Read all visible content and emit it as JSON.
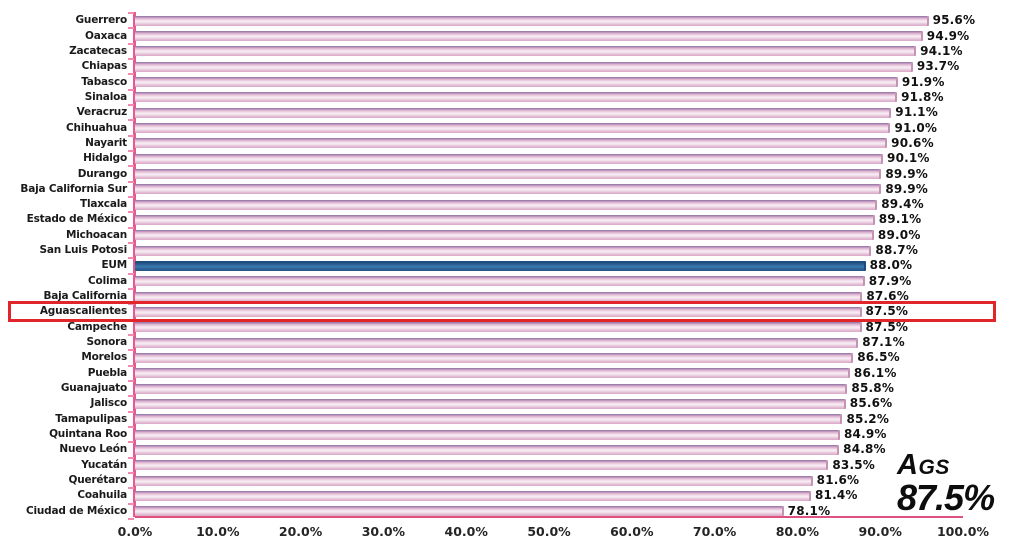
{
  "chart_data": {
    "type": "bar",
    "orientation": "horizontal",
    "title": "",
    "xlabel": "",
    "ylabel": "",
    "xlim": [
      0,
      100
    ],
    "grid": false,
    "legend": null,
    "x_tick_labels": [
      "0.0%",
      "10.0%",
      "20.0%",
      "30.0%",
      "40.0%",
      "50.0%",
      "60.0%",
      "70.0%",
      "80.0%",
      "90.0%",
      "100.0%"
    ],
    "categories": [
      "Guerrero",
      "Oaxaca",
      "Zacatecas",
      "Chiapas",
      "Tabasco",
      "Sinaloa",
      "Veracruz",
      "Chihuahua",
      "Nayarit",
      "Hidalgo",
      "Durango",
      "Baja California Sur",
      "Tlaxcala",
      "Estado de México",
      "Michoacan",
      "San Luis Potosi",
      "EUM",
      "Colima",
      "Baja California",
      "Aguascalientes",
      "Campeche",
      "Sonora",
      "Morelos",
      "Puebla",
      "Guanajuato",
      "Jalisco",
      "Tamapulipas",
      "Quintana Roo",
      "Nuevo León",
      "Yucatán",
      "Querétaro",
      "Coahuila",
      "Ciudad de México"
    ],
    "values": [
      95.6,
      94.9,
      94.1,
      93.7,
      91.9,
      91.8,
      91.1,
      91.0,
      90.6,
      90.1,
      89.9,
      89.9,
      89.4,
      89.1,
      89.0,
      88.7,
      88.0,
      87.9,
      87.6,
      87.5,
      87.5,
      87.1,
      86.5,
      86.1,
      85.8,
      85.6,
      85.2,
      84.9,
      84.8,
      83.5,
      81.6,
      81.4,
      78.1
    ],
    "value_labels": [
      "95.6%",
      "94.9%",
      "94.1%",
      "93.7%",
      "91.9%",
      "91.8%",
      "91.1%",
      "91.0%",
      "90.6%",
      "90.1%",
      "89.9%",
      "89.9%",
      "89.4%",
      "89.1%",
      "89.0%",
      "88.7%",
      "88.0%",
      "87.9%",
      "87.6%",
      "87.5%",
      "87.5%",
      "87.1%",
      "86.5%",
      "86.1%",
      "85.8%",
      "85.6%",
      "85.2%",
      "84.9%",
      "84.8%",
      "83.5%",
      "81.6%",
      "81.4%",
      "78.1%"
    ],
    "reference_series": "EUM",
    "highlighted_category": "Aguascalientes",
    "colors": {
      "bar_fill": "#ecd2e2",
      "bar_edge": "#9d7fae",
      "bar_shine": "#f8eef5",
      "reference_bar": "#2b6496",
      "reference_bar_edge": "#1d4d7c",
      "axis_line": "#e75a90",
      "highlight_box": "#e2252b",
      "text": "#1a1a1a"
    }
  },
  "annotation": {
    "label": "AGS",
    "value": "87.5%"
  }
}
